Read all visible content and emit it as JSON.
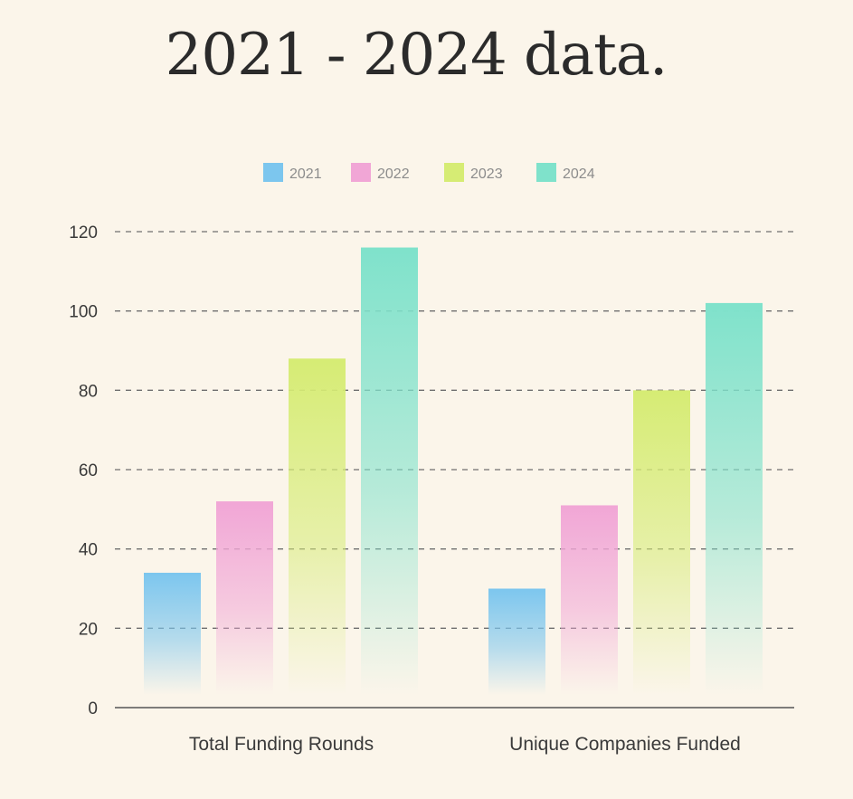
{
  "chart_data": {
    "type": "bar",
    "title": "2021 - 2024 data.",
    "categories": [
      "Total Funding Rounds",
      "Unique Companies Funded"
    ],
    "series": [
      {
        "name": "2021",
        "color": "#7cc6ee",
        "values": [
          34,
          30
        ]
      },
      {
        "name": "2022",
        "color": "#f1a6d6",
        "values": [
          52,
          51
        ]
      },
      {
        "name": "2023",
        "color": "#d6ec74",
        "values": [
          88,
          80
        ]
      },
      {
        "name": "2024",
        "color": "#7fe2cb",
        "values": [
          116,
          102
        ]
      }
    ],
    "yticks": [
      0,
      20,
      40,
      60,
      80,
      100,
      120
    ],
    "ylim": [
      0,
      120
    ],
    "grid": true,
    "legend": "top-center",
    "xlabel": "",
    "ylabel": ""
  }
}
